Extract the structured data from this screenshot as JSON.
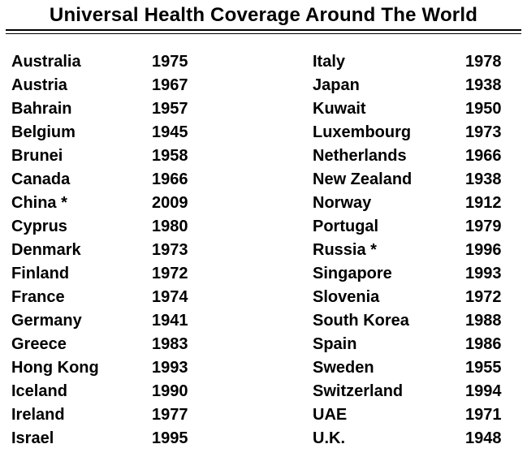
{
  "title": "Universal Health Coverage Around The World",
  "table": {
    "rows": [
      {
        "left_country": "Australia",
        "left_year": "1975",
        "right_country": "Italy",
        "right_year": "1978"
      },
      {
        "left_country": "Austria",
        "left_year": "1967",
        "right_country": "Japan",
        "right_year": "1938"
      },
      {
        "left_country": "Bahrain",
        "left_year": "1957",
        "right_country": "Kuwait",
        "right_year": "1950"
      },
      {
        "left_country": "Belgium",
        "left_year": "1945",
        "right_country": "Luxembourg",
        "right_year": "1973"
      },
      {
        "left_country": "Brunei",
        "left_year": "1958",
        "right_country": "Netherlands",
        "right_year": "1966"
      },
      {
        "left_country": "Canada",
        "left_year": "1966",
        "right_country": "New Zealand",
        "right_year": "1938"
      },
      {
        "left_country": "China *",
        "left_year": "2009",
        "right_country": "Norway",
        "right_year": "1912"
      },
      {
        "left_country": "Cyprus",
        "left_year": "1980",
        "right_country": "Portugal",
        "right_year": "1979"
      },
      {
        "left_country": "Denmark",
        "left_year": "1973",
        "right_country": "Russia *",
        "right_year": "1996"
      },
      {
        "left_country": "Finland",
        "left_year": "1972",
        "right_country": "Singapore",
        "right_year": "1993"
      },
      {
        "left_country": "France",
        "left_year": "1974",
        "right_country": "Slovenia",
        "right_year": "1972"
      },
      {
        "left_country": "Germany",
        "left_year": "1941",
        "right_country": "South Korea",
        "right_year": "1988"
      },
      {
        "left_country": "Greece",
        "left_year": "1983",
        "right_country": "Spain",
        "right_year": "1986"
      },
      {
        "left_country": "Hong Kong",
        "left_year": "1993",
        "right_country": "Sweden",
        "right_year": "1955"
      },
      {
        "left_country": "Iceland",
        "left_year": "1990",
        "right_country": "Switzerland",
        "right_year": "1994"
      },
      {
        "left_country": "Ireland",
        "left_year": "1977",
        "right_country": "UAE",
        "right_year": "1971"
      },
      {
        "left_country": "Israel",
        "left_year": "1995",
        "right_country": "U.K.",
        "right_year": "1948"
      }
    ]
  },
  "colors": {
    "background": "#ffffff",
    "text": "#000000",
    "rule": "#000000"
  }
}
